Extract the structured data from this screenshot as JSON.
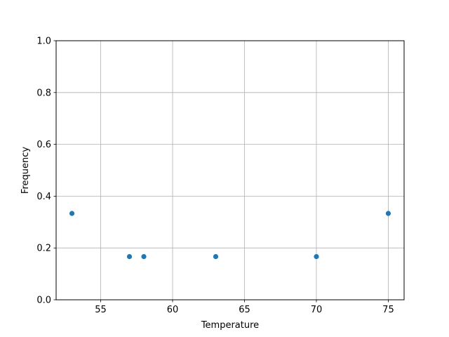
{
  "chart_data": {
    "type": "scatter",
    "title": "",
    "xlabel": "Temperature",
    "ylabel": "Frequency",
    "x": [
      53,
      57,
      58,
      63,
      70,
      75
    ],
    "y": [
      0.3333,
      0.1667,
      0.1667,
      0.1667,
      0.1667,
      0.3333
    ],
    "xlim": [
      51.9,
      76.1
    ],
    "ylim": [
      0.0,
      1.0
    ],
    "xticks": [
      55,
      60,
      65,
      70,
      75
    ],
    "xtick_labels": [
      "55",
      "60",
      "65",
      "70",
      "75"
    ],
    "yticks": [
      0.0,
      0.2,
      0.4,
      0.6,
      0.8,
      1.0
    ],
    "ytick_labels": [
      "0.0",
      "0.2",
      "0.4",
      "0.6",
      "0.8",
      "1.0"
    ],
    "grid": true,
    "marker_color": "#1f77b4",
    "grid_color": "#b0b0b0"
  }
}
